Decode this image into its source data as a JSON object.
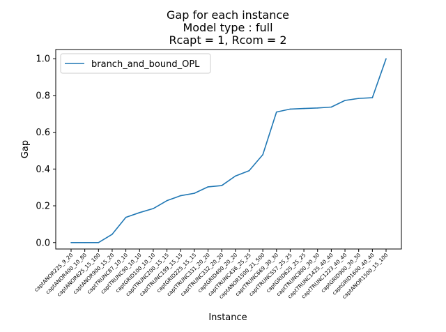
{
  "chart_data": {
    "type": "line",
    "title_lines": [
      "Gap for each instance",
      "Model type : full",
      "Rcapt = 1, Rcom = 2"
    ],
    "xlabel": "Instance",
    "ylabel": "Gap",
    "ylim": [
      -0.035,
      1.05
    ],
    "yticks": [
      "0.0",
      "0.2",
      "0.4",
      "0.6",
      "0.8",
      "1.0"
    ],
    "ytick_values": [
      0.0,
      0.2,
      0.4,
      0.6,
      0.8,
      1.0
    ],
    "grid": false,
    "legend_position": "top-left",
    "categories": [
      "captANOR225_9_20",
      "captANOR400_10_80",
      "captANOR625_15_100",
      "captANOR900_15_20",
      "captTRUNC87_10_10",
      "captTRUNC90_10_10",
      "captGRID100_10_10",
      "captTRUNC200_15_15",
      "captTRUNC199_15_15",
      "captGRID225_15_15",
      "captTRUNC331_20_20",
      "captTRUNC332_20_20",
      "captGRID400_20_20",
      "captTRUNC436_25_25",
      "captANOR1500_21_500",
      "captTRUNC669_30_30",
      "captTRUNC557_25_25",
      "captGRID625_25_25",
      "captTRUNC800_30_30",
      "captTRUNC1425_40_40",
      "captTRUNC1223_40_40",
      "captGRID900_30_30",
      "captGRID1600_40_40",
      "captANOR1500_15_100"
    ],
    "series": [
      {
        "name": "branch_and_bound_OPL",
        "color": "#1f77b4",
        "values": [
          0.0,
          0.0,
          0.0,
          0.045,
          0.137,
          0.163,
          0.185,
          0.228,
          0.255,
          0.268,
          0.303,
          0.31,
          0.362,
          0.391,
          0.478,
          0.71,
          0.726,
          0.729,
          0.732,
          0.737,
          0.773,
          0.784,
          0.788,
          1.0
        ]
      }
    ]
  }
}
